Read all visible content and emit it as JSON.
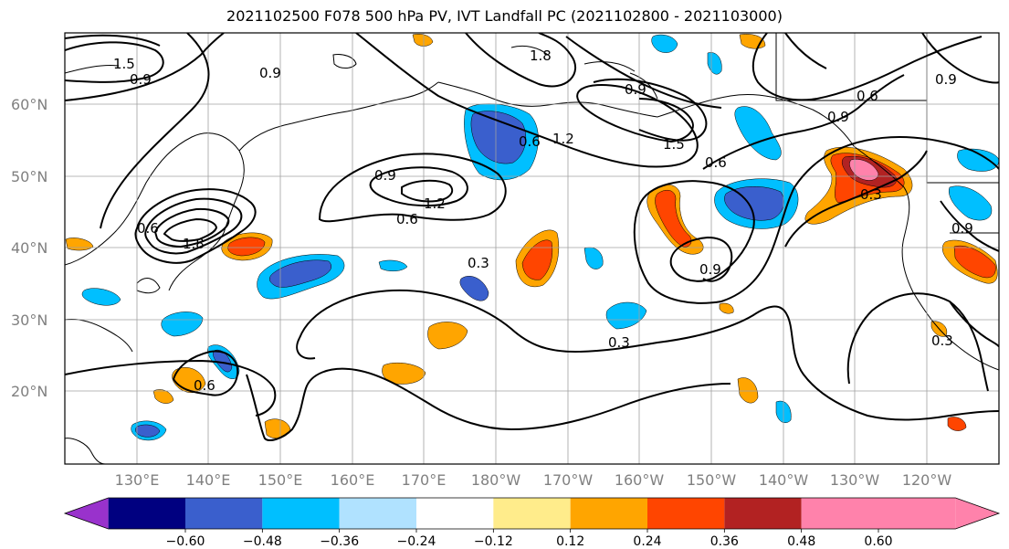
{
  "title": "2021102500 F078 500 hPa PV, IVT Landfall PC (2021102800 - 2021103000)",
  "lat_labels": [
    "60°N",
    "50°N",
    "40°N",
    "30°N",
    "20°N"
  ],
  "lon_labels": [
    "130°E",
    "140°E",
    "150°E",
    "160°E",
    "170°E",
    "180°W",
    "170°W",
    "160°W",
    "150°W",
    "140°W",
    "130°W",
    "120°W"
  ],
  "contour_labels": [
    "1.5",
    "0.9",
    "1.8",
    "0.9",
    "0.6",
    "0.9",
    "1.2",
    "1.5",
    "0.6",
    "0.6",
    "0.9",
    "0.9",
    "0.6",
    "1.2",
    "0.6",
    "0.9",
    "1.8",
    "0.3",
    "0.9",
    "0.3",
    "0.3",
    "0.6",
    "0.3",
    "0.9"
  ],
  "colorbar": {
    "ticks": [
      "−0.60",
      "−0.48",
      "−0.36",
      "−0.24",
      "−0.12",
      "0.12",
      "0.24",
      "0.36",
      "0.48",
      "0.60"
    ],
    "colors": [
      "#9932cc",
      "#000080",
      "#3a5fcd",
      "#00bfff",
      "#b0e2ff",
      "#ffffff",
      "#ffec8b",
      "#ffa500",
      "#ff4500",
      "#b22222",
      "#ff82ab",
      "#ff82ab"
    ]
  },
  "fill_colors": {
    "neg1": "#b0e2ff",
    "neg2": "#00bfff",
    "neg3": "#3a5fcd",
    "neg4": "#000080",
    "pos1": "#ffec8b",
    "pos2": "#ffa500",
    "pos3": "#ff4500",
    "pos4": "#b22222",
    "pos5": "#ff82ab"
  }
}
